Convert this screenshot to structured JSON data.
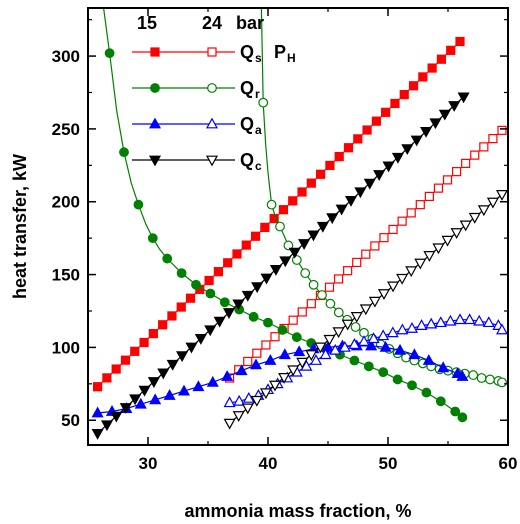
{
  "chart_data": {
    "type": "scatter",
    "xlabel": "ammonia mass fraction, %",
    "ylabel": "heat transfer, kW",
    "xlim": [
      25,
      60
    ],
    "ylim": [
      33,
      333
    ],
    "xticks": [
      30,
      40,
      50,
      60
    ],
    "yticks": [
      50,
      100,
      150,
      200,
      250,
      300
    ],
    "legend": {
      "placement": "top-left",
      "pressure_headers": [
        "15",
        "24",
        "bar"
      ],
      "note": "P",
      "note_sub": "H",
      "entries": [
        {
          "symbol": "Q",
          "sub": "s",
          "color": "#ff0000",
          "marker": "square"
        },
        {
          "symbol": "Q",
          "sub": "r",
          "color": "#008000",
          "marker": "circle"
        },
        {
          "symbol": "Q",
          "sub": "a",
          "color": "#0000ff",
          "marker": "triangle-up"
        },
        {
          "symbol": "Q",
          "sub": "c",
          "color": "#000000",
          "marker": "triangle-down"
        }
      ]
    },
    "series": [
      {
        "quantity": "Qs",
        "pressure": "15",
        "color": "#ff0000",
        "marker": "square",
        "filled": true,
        "x": [
          25.8,
          56
        ],
        "y": [
          73,
          310
        ],
        "points": 40
      },
      {
        "quantity": "Qs",
        "pressure": "24",
        "color": "#ff0000",
        "marker": "square",
        "filled": false,
        "x": [
          36.8,
          59.5
        ],
        "y": [
          79,
          249
        ],
        "points": 31
      },
      {
        "quantity": "Qr",
        "pressure": "15",
        "color": "#008000",
        "marker": "circle",
        "filled": true,
        "x": [
          26.8,
          28,
          29.2,
          30.4,
          31.6,
          32.8,
          34,
          35.2,
          36.4,
          37.6,
          38.8,
          40,
          41.2,
          42.4,
          43.6,
          44.8,
          46,
          47.2,
          48.4,
          49.6,
          50.8,
          52,
          53.2,
          54.4,
          55.6,
          56.2
        ],
        "y": [
          302,
          234,
          198,
          175,
          161,
          151,
          143,
          137,
          131,
          126,
          121,
          117,
          112,
          107,
          103,
          99,
          95,
          91,
          87,
          83,
          78,
          74,
          69,
          63,
          56,
          52
        ],
        "curve_x": [
          26.3,
          26.8,
          27.4,
          28,
          28.6,
          29.2,
          29.8,
          30.4,
          31,
          31.6,
          32.2,
          32.8,
          33.4,
          34,
          35.2,
          36.4,
          37.6,
          38.8,
          40,
          41.2,
          42.4,
          43.6,
          44.8,
          46,
          47.2,
          48.4,
          49.6,
          50.8,
          52,
          53.2,
          54.4,
          55.6,
          56.2
        ],
        "curve_y": [
          333,
          302,
          262,
          234,
          213,
          198,
          185,
          175,
          167,
          161,
          156,
          151,
          147,
          143,
          137,
          131,
          126,
          121,
          117,
          112,
          107,
          103,
          99,
          95,
          91,
          87,
          83,
          78,
          74,
          69,
          63,
          56,
          52
        ]
      },
      {
        "quantity": "Qr",
        "pressure": "24",
        "color": "#008000",
        "marker": "circle",
        "filled": false,
        "x": [
          39.6,
          40.3,
          41,
          41.7,
          42.4,
          43.1,
          43.8,
          44.5,
          45.2,
          45.9,
          46.6,
          47.3,
          48,
          48.7,
          49.4,
          50.1,
          50.8,
          51.5,
          52.2,
          52.9,
          53.6,
          54.3,
          55,
          55.7,
          56.4,
          57.1,
          57.8,
          58.5,
          59.2,
          59.5
        ],
        "y": [
          268,
          198,
          183,
          170,
          160,
          151,
          143,
          136,
          130,
          124,
          119,
          114,
          110,
          106,
          102,
          99,
          96,
          93,
          91,
          89,
          87,
          85,
          84,
          83,
          82,
          81,
          79,
          78,
          77,
          76
        ],
        "curve_x": [
          39.45,
          39.6,
          39.8,
          40,
          40.3,
          40.6,
          41,
          41.7,
          42.4,
          43.1,
          43.8,
          44.5,
          45.2,
          45.9,
          46.6,
          47.3,
          48,
          48.7,
          49.4,
          50.1,
          50.8,
          51.5,
          52.2,
          52.9,
          53.6,
          54.3,
          55,
          55.7,
          56.4,
          57.1,
          57.8,
          58.5,
          59.2,
          59.5
        ],
        "curve_y": [
          333,
          268,
          240,
          220,
          198,
          190,
          183,
          170,
          160,
          151,
          143,
          136,
          130,
          124,
          119,
          114,
          110,
          106,
          102,
          99,
          96,
          93,
          91,
          89,
          87,
          85,
          84,
          83,
          82,
          81,
          79,
          78,
          77,
          76
        ]
      },
      {
        "quantity": "Qa",
        "pressure": "15",
        "color": "#0000ff",
        "marker": "triangle-up",
        "filled": true,
        "x": [
          25.8,
          27,
          28.2,
          29.4,
          30.6,
          31.8,
          33,
          34.2,
          35.4,
          36.6,
          37.8,
          39,
          40.2,
          41.4,
          42.6,
          43.8,
          45,
          46.2,
          47.4,
          48.6,
          49.8,
          51,
          52.2,
          53.4,
          54.6,
          55.8,
          56.2
        ],
        "y": [
          55,
          56,
          58,
          61,
          64,
          67,
          70,
          73,
          76,
          80,
          84,
          88,
          91,
          95,
          97,
          99,
          100,
          101,
          101,
          101,
          100,
          98,
          95,
          91,
          86,
          82,
          80
        ]
      },
      {
        "quantity": "Qa",
        "pressure": "24",
        "color": "#0000ff",
        "marker": "triangle-up",
        "filled": false,
        "x": [
          36.8,
          37.6,
          38.4,
          39.2,
          40,
          40.8,
          41.6,
          42.4,
          43.2,
          44,
          44.8,
          45.6,
          46.4,
          47.2,
          48,
          48.8,
          49.6,
          50.4,
          51.2,
          52,
          52.8,
          53.6,
          54.4,
          55.2,
          56,
          56.8,
          57.6,
          58.4,
          59.2,
          59.5
        ],
        "y": [
          62,
          63,
          65,
          67,
          71,
          75,
          79,
          83,
          87,
          91,
          95,
          98,
          100,
          102,
          104,
          106,
          108,
          110,
          112,
          113,
          115,
          116,
          117,
          118,
          119,
          119,
          118,
          117,
          115,
          112
        ]
      },
      {
        "quantity": "Qc",
        "pressure": "15",
        "color": "#000000",
        "marker": "triangle-down",
        "filled": true,
        "x": [
          25.8,
          56.3
        ],
        "y": [
          41,
          272
        ],
        "points": 40
      },
      {
        "quantity": "Qc",
        "pressure": "24",
        "color": "#000000",
        "marker": "triangle-down",
        "filled": false,
        "x": [
          36.8,
          59.5
        ],
        "y": [
          48,
          205
        ],
        "points": 31
      }
    ]
  }
}
